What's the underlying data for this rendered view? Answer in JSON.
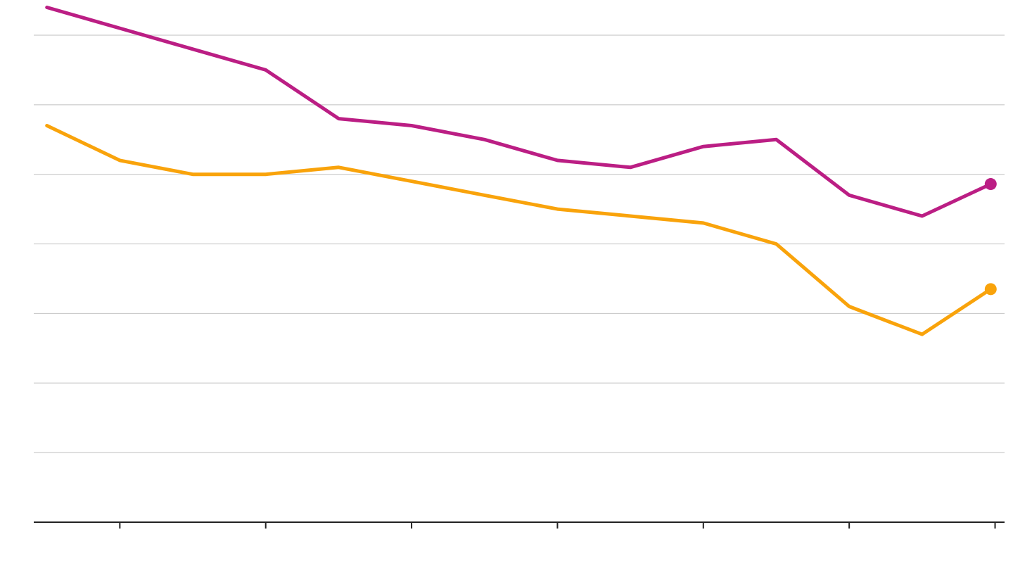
{
  "chart_data": {
    "type": "line",
    "x": [
      0,
      1,
      2,
      3,
      4,
      5,
      6,
      7,
      8,
      9,
      10,
      11,
      12,
      12.94
    ],
    "xlim": [
      -0.18,
      13.13
    ],
    "x_ticks": [
      1,
      3,
      5,
      7,
      9,
      11,
      13
    ],
    "ylim": [
      0,
      7
    ],
    "y_gridlines": [
      1,
      2,
      3,
      4,
      5,
      6,
      7
    ],
    "grid": true,
    "series": [
      {
        "color": "#bb1e84",
        "values": [
          7.4,
          7.1,
          6.8,
          6.5,
          5.8,
          5.7,
          5.5,
          5.2,
          5.1,
          5.4,
          5.5,
          4.7,
          4.4,
          4.86
        ]
      },
      {
        "color": "#f9a30b",
        "values": [
          5.7,
          5.2,
          5.0,
          5.0,
          5.1,
          4.9,
          4.7,
          4.5,
          4.4,
          4.3,
          4.0,
          3.1,
          2.7,
          3.35
        ]
      }
    ]
  }
}
